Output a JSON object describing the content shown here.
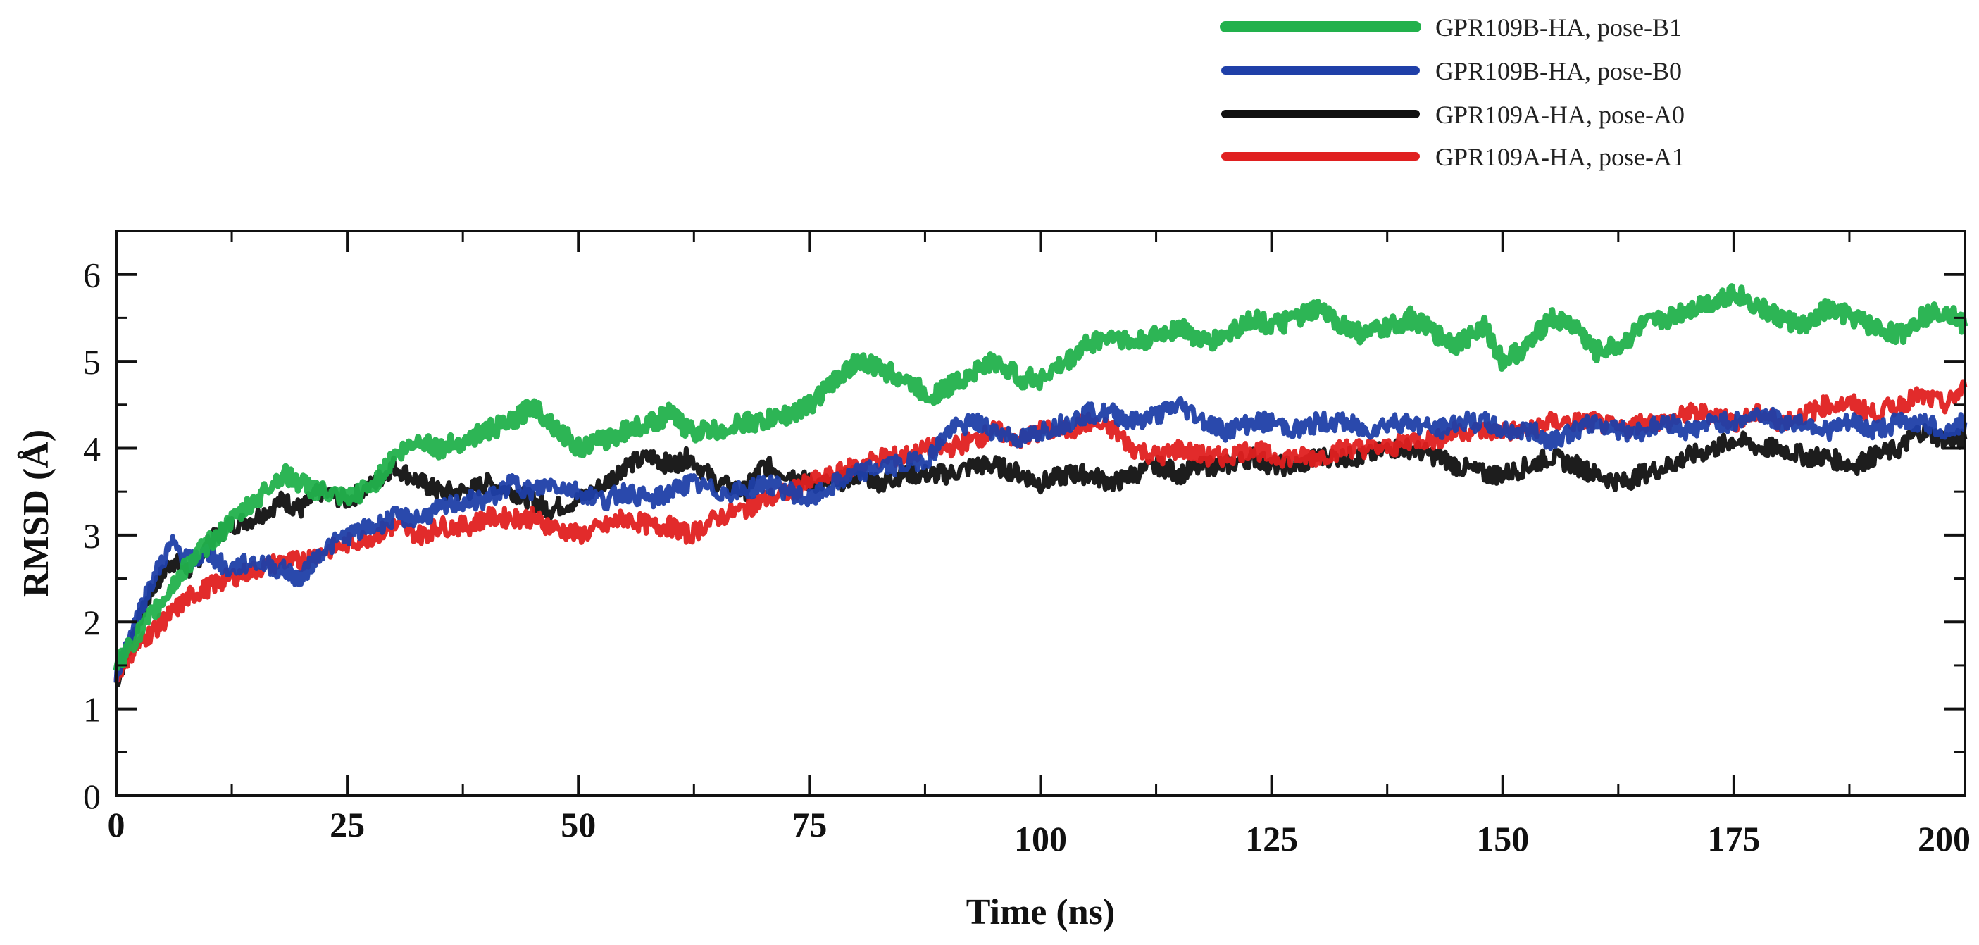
{
  "chart_data": {
    "type": "line",
    "title": "",
    "xlabel": "Time (ns)",
    "ylabel": "RMSD (Å)",
    "xlim": [
      0,
      200
    ],
    "ylim": [
      0,
      6.5
    ],
    "x_ticks": [
      0,
      25,
      50,
      75,
      100,
      125,
      150,
      175,
      200
    ],
    "y_ticks": [
      0,
      1,
      2,
      3,
      4,
      5,
      6
    ],
    "grid": false,
    "legend_position": "top-right",
    "x": [
      0,
      2,
      4,
      6,
      8,
      10,
      12,
      15,
      18,
      20,
      22,
      25,
      28,
      30,
      33,
      35,
      38,
      40,
      43,
      45,
      47,
      50,
      53,
      55,
      58,
      60,
      62,
      65,
      68,
      70,
      73,
      75,
      78,
      80,
      83,
      85,
      88,
      90,
      93,
      95,
      98,
      100,
      103,
      105,
      108,
      110,
      113,
      115,
      118,
      120,
      123,
      125,
      128,
      130,
      133,
      135,
      138,
      140,
      143,
      145,
      148,
      150,
      153,
      155,
      158,
      160,
      163,
      165,
      168,
      170,
      173,
      175,
      178,
      180,
      183,
      185,
      188,
      190,
      193,
      195,
      198,
      200
    ],
    "series": [
      {
        "name": "GPR109B-HA, pose-B1",
        "color": "#22b14c",
        "values": [
          1.5,
          1.8,
          2.1,
          2.4,
          2.7,
          2.9,
          3.1,
          3.4,
          3.7,
          3.6,
          3.5,
          3.4,
          3.6,
          3.9,
          4.1,
          4.0,
          4.1,
          4.2,
          4.3,
          4.5,
          4.3,
          4.0,
          4.1,
          4.2,
          4.3,
          4.4,
          4.2,
          4.2,
          4.3,
          4.3,
          4.4,
          4.5,
          4.8,
          5.0,
          4.9,
          4.8,
          4.6,
          4.7,
          4.9,
          5.0,
          4.8,
          4.8,
          5.0,
          5.2,
          5.3,
          5.2,
          5.3,
          5.4,
          5.2,
          5.3,
          5.5,
          5.4,
          5.5,
          5.6,
          5.4,
          5.3,
          5.4,
          5.5,
          5.3,
          5.2,
          5.4,
          5.0,
          5.2,
          5.5,
          5.4,
          5.1,
          5.2,
          5.4,
          5.5,
          5.6,
          5.7,
          5.8,
          5.6,
          5.5,
          5.4,
          5.6,
          5.5,
          5.4,
          5.3,
          5.5,
          5.6,
          5.4
        ]
      },
      {
        "name": "GPR109B-HA, pose-B0",
        "color": "#1f3fa8",
        "values": [
          1.4,
          2.0,
          2.5,
          2.9,
          2.7,
          2.8,
          2.6,
          2.7,
          2.6,
          2.5,
          2.8,
          3.0,
          3.1,
          3.2,
          3.2,
          3.3,
          3.4,
          3.4,
          3.6,
          3.5,
          3.6,
          3.5,
          3.4,
          3.5,
          3.4,
          3.5,
          3.6,
          3.5,
          3.5,
          3.6,
          3.5,
          3.4,
          3.6,
          3.7,
          3.8,
          3.8,
          3.9,
          4.2,
          4.3,
          4.2,
          4.1,
          4.2,
          4.3,
          4.4,
          4.4,
          4.3,
          4.4,
          4.5,
          4.3,
          4.2,
          4.3,
          4.3,
          4.2,
          4.3,
          4.3,
          4.2,
          4.3,
          4.3,
          4.2,
          4.3,
          4.3,
          4.2,
          4.2,
          4.1,
          4.2,
          4.3,
          4.2,
          4.2,
          4.3,
          4.2,
          4.3,
          4.3,
          4.4,
          4.3,
          4.3,
          4.2,
          4.3,
          4.2,
          4.3,
          4.3,
          4.2,
          4.3
        ]
      },
      {
        "name": "GPR109A-HA, pose-A0",
        "color": "#111111",
        "values": [
          1.3,
          1.9,
          2.4,
          2.7,
          2.6,
          2.9,
          3.1,
          3.2,
          3.4,
          3.3,
          3.5,
          3.4,
          3.6,
          3.8,
          3.6,
          3.5,
          3.5,
          3.6,
          3.5,
          3.4,
          3.3,
          3.4,
          3.6,
          3.8,
          3.9,
          3.8,
          3.9,
          3.6,
          3.5,
          3.8,
          3.7,
          3.6,
          3.6,
          3.7,
          3.6,
          3.7,
          3.7,
          3.7,
          3.8,
          3.8,
          3.7,
          3.6,
          3.7,
          3.7,
          3.6,
          3.7,
          3.8,
          3.7,
          3.8,
          3.8,
          3.9,
          3.8,
          3.8,
          3.9,
          3.9,
          3.9,
          4.0,
          4.0,
          3.9,
          3.8,
          3.7,
          3.7,
          3.8,
          3.9,
          3.8,
          3.7,
          3.6,
          3.7,
          3.8,
          3.9,
          4.0,
          4.1,
          4.0,
          4.0,
          3.9,
          3.9,
          3.8,
          3.9,
          4.0,
          4.2,
          4.1,
          4.1
        ]
      },
      {
        "name": "GPR109A-HA, pose-A1",
        "color": "#e02020",
        "values": [
          1.4,
          1.7,
          1.9,
          2.1,
          2.3,
          2.4,
          2.5,
          2.6,
          2.7,
          2.7,
          2.8,
          2.9,
          3.0,
          3.1,
          3.0,
          3.1,
          3.1,
          3.2,
          3.2,
          3.2,
          3.1,
          3.0,
          3.1,
          3.2,
          3.1,
          3.1,
          3.0,
          3.2,
          3.3,
          3.4,
          3.5,
          3.6,
          3.7,
          3.8,
          3.9,
          3.9,
          4.0,
          4.0,
          4.1,
          4.2,
          4.1,
          4.2,
          4.2,
          4.3,
          4.2,
          4.0,
          3.9,
          4.0,
          3.9,
          3.9,
          4.0,
          3.9,
          3.9,
          3.9,
          4.0,
          4.0,
          4.0,
          4.1,
          4.1,
          4.2,
          4.2,
          4.2,
          4.2,
          4.3,
          4.3,
          4.3,
          4.2,
          4.3,
          4.3,
          4.4,
          4.4,
          4.3,
          4.4,
          4.3,
          4.4,
          4.5,
          4.5,
          4.4,
          4.5,
          4.6,
          4.5,
          4.7
        ]
      }
    ]
  }
}
